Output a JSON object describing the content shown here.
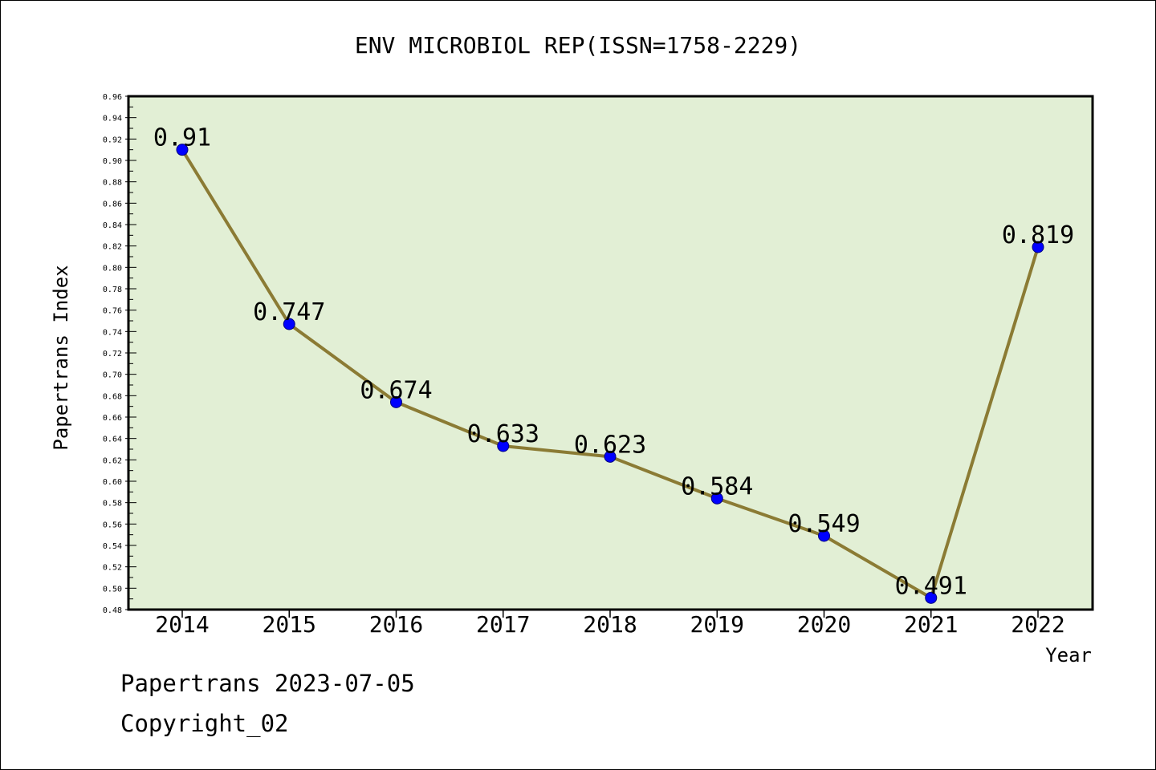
{
  "chart_data": {
    "type": "line",
    "title": "ENV MICROBIOL REP(ISSN=1758-2229)",
    "xlabel": "Year",
    "ylabel": "Papertrans Index",
    "categories": [
      "2014",
      "2015",
      "2016",
      "2017",
      "2018",
      "2019",
      "2020",
      "2021",
      "2022"
    ],
    "series": [
      {
        "values": [
          0.91,
          0.747,
          0.674,
          0.633,
          0.623,
          0.584,
          0.549,
          0.491,
          0.819
        ],
        "labels": [
          "0.91",
          "0.747",
          "0.674",
          "0.633",
          "0.623",
          "0.584",
          "0.549",
          "0.491",
          "0.819"
        ]
      }
    ],
    "ylim": [
      0.48,
      0.96
    ],
    "yticks": [
      "0.48",
      "0.50",
      "0.52",
      "0.54",
      "0.56",
      "0.58",
      "0.60",
      "0.62",
      "0.64",
      "0.66",
      "0.68",
      "0.70",
      "0.72",
      "0.74",
      "0.76",
      "0.78",
      "0.80",
      "0.82",
      "0.84",
      "0.86",
      "0.88",
      "0.90",
      "0.92",
      "0.94",
      "0.96"
    ],
    "grid": false,
    "legend": "none",
    "colors": {
      "plot_background": "#e2efd5",
      "line": "#8b7b34",
      "marker": "#0000ff",
      "marker_edge": "#000080"
    }
  },
  "footer": {
    "line1": "Papertrans 2023-07-05",
    "line2": "Copyright_02"
  }
}
